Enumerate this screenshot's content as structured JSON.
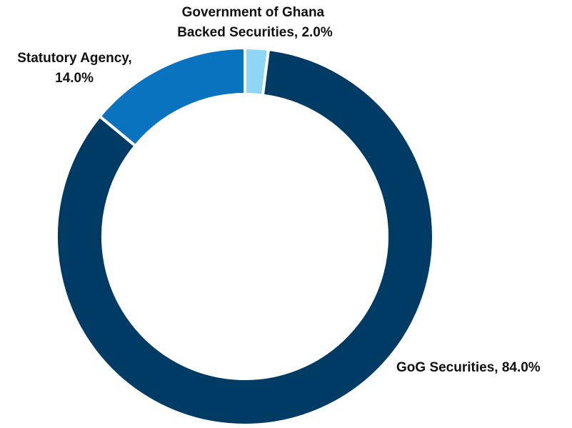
{
  "chart_data": {
    "type": "pie",
    "style": "donut",
    "title": "",
    "slices": [
      {
        "label_lines": [
          "Government of Ghana",
          "Backed Securities, 2.0%"
        ],
        "value": 2.0,
        "color": "#8fd6f5"
      },
      {
        "label_lines": [
          "GoG Securities, 84.0%"
        ],
        "value": 84.0,
        "color": "#003b66"
      },
      {
        "label_lines": [
          "Statutory Agency,",
          "14.0%"
        ],
        "value": 14.0,
        "color": "#0a73bf"
      }
    ],
    "legend": "none",
    "separator_color": "#ffffff"
  }
}
